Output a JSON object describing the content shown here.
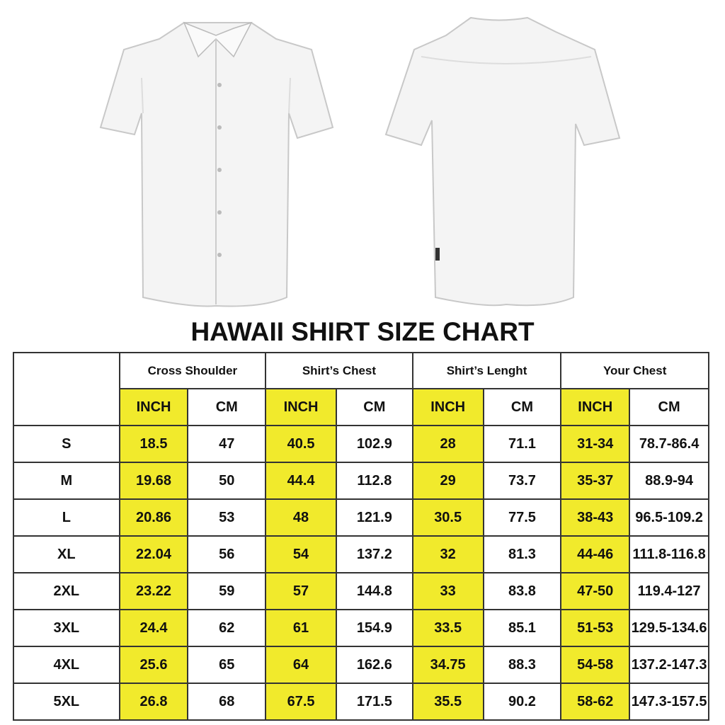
{
  "title": "HAWAII SHIRT SIZE CHART",
  "colors": {
    "highlight": "#f1ea2c",
    "border": "#333333"
  },
  "images": [
    "shirt-front",
    "shirt-back"
  ],
  "groups": [
    "Cross Shoulder",
    "Shirt’s Chest",
    "Shirt’s Lenght",
    "Your Chest"
  ],
  "units": {
    "inch": "INCH",
    "cm": "CM"
  },
  "rows": [
    {
      "size": "S",
      "values": [
        "18.5",
        "47",
        "40.5",
        "102.9",
        "28",
        "71.1",
        "31-34",
        "78.7-86.4"
      ]
    },
    {
      "size": "M",
      "values": [
        "19.68",
        "50",
        "44.4",
        "112.8",
        "29",
        "73.7",
        "35-37",
        "88.9-94"
      ]
    },
    {
      "size": "L",
      "values": [
        "20.86",
        "53",
        "48",
        "121.9",
        "30.5",
        "77.5",
        "38-43",
        "96.5-109.2"
      ]
    },
    {
      "size": "XL",
      "values": [
        "22.04",
        "56",
        "54",
        "137.2",
        "32",
        "81.3",
        "44-46",
        "111.8-116.8"
      ]
    },
    {
      "size": "2XL",
      "values": [
        "23.22",
        "59",
        "57",
        "144.8",
        "33",
        "83.8",
        "47-50",
        "119.4-127"
      ]
    },
    {
      "size": "3XL",
      "values": [
        "24.4",
        "62",
        "61",
        "154.9",
        "33.5",
        "85.1",
        "51-53",
        "129.5-134.6"
      ]
    },
    {
      "size": "4XL",
      "values": [
        "25.6",
        "65",
        "64",
        "162.6",
        "34.75",
        "88.3",
        "54-58",
        "137.2-147.3"
      ]
    },
    {
      "size": "5XL",
      "values": [
        "26.8",
        "68",
        "67.5",
        "171.5",
        "35.5",
        "90.2",
        "58-62",
        "147.3-157.5"
      ]
    }
  ]
}
